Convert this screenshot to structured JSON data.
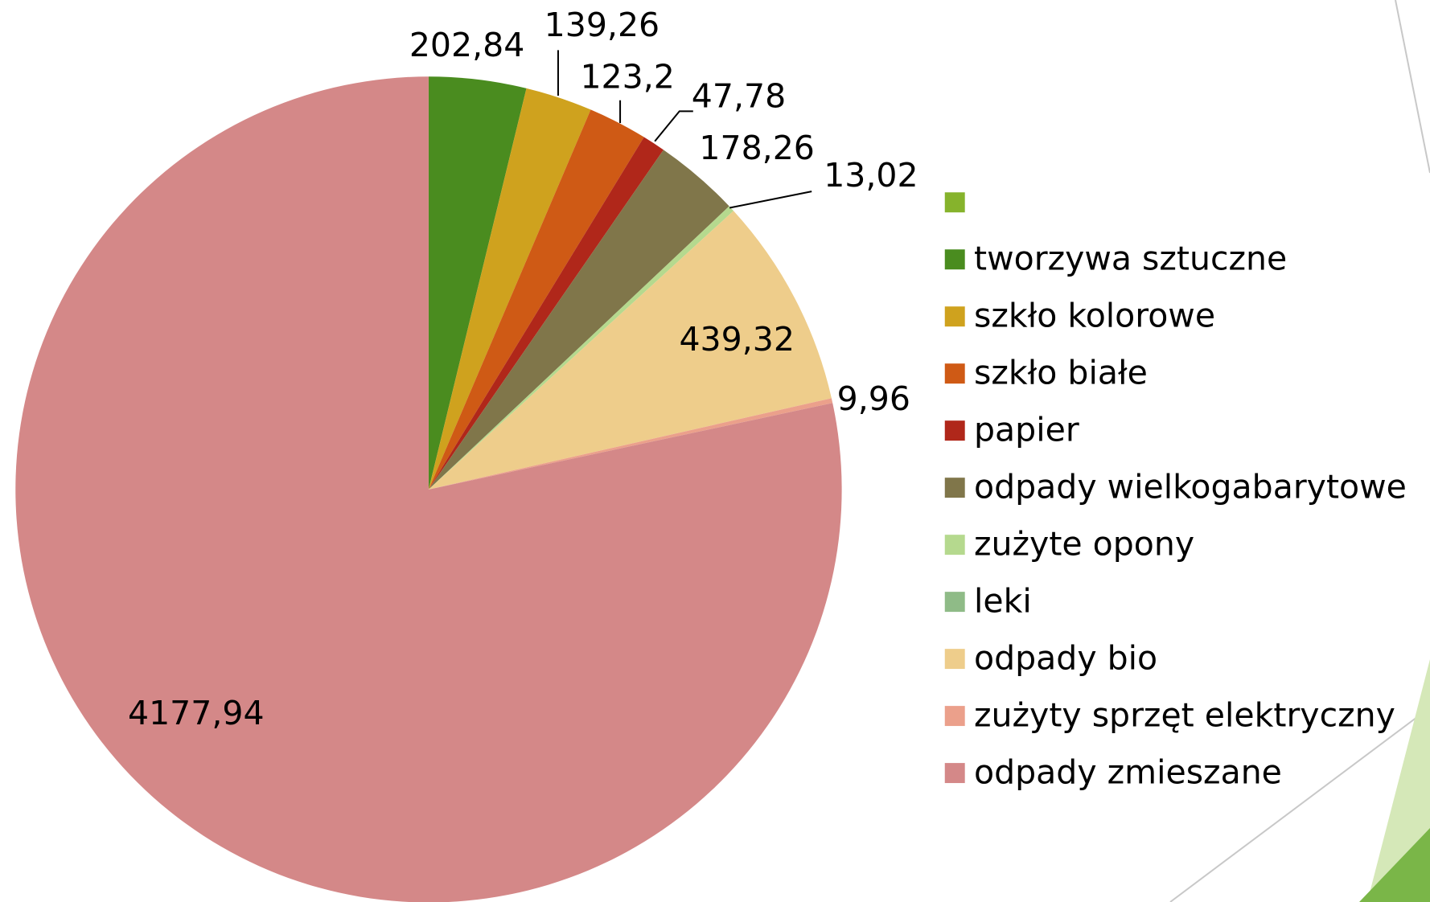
{
  "chart_data": {
    "type": "pie",
    "categories": [
      null,
      "tworzywa sztuczne",
      "szkło kolorowe",
      "szkło białe",
      "papier",
      "odpady wielkogabarytowe",
      "zużyte opony",
      "leki",
      "odpady bio",
      "zużyty sprzęt elektryczny",
      "odpady zmieszane"
    ],
    "values": [
      0,
      202.84,
      139.26,
      123.2,
      47.78,
      178.26,
      13.02,
      0,
      439.32,
      9.96,
      4177.94
    ],
    "value_labels": [
      null,
      "202,84",
      "139,26",
      "123,2",
      "47,78",
      "178,26",
      "13,02",
      null,
      "439,32",
      "9,96",
      "4177,94"
    ],
    "colors": [
      "#86b32c",
      "#4a8c1f",
      "#cfa21e",
      "#cf5a15",
      "#b0271a",
      "#80764a",
      "#b5d98e",
      "#8fbb87",
      "#eecd8b",
      "#eba08b",
      "#d48888"
    ],
    "legend": "right"
  }
}
